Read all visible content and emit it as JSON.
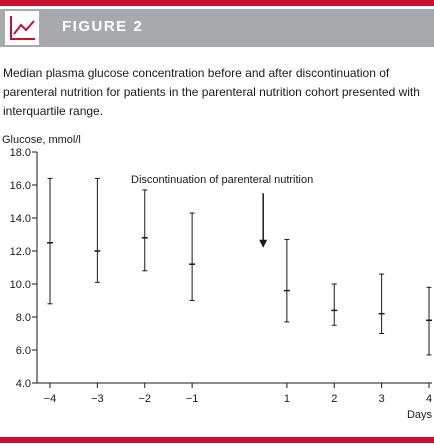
{
  "header": {
    "title": "FIGURE 2",
    "icon": "line-chart-icon",
    "accent_color": "#c8102e",
    "band_color": "#a7a9ac"
  },
  "caption": "Median plasma glucose concentration before and after discontinuation of parenteral nutrition for patients in the parenteral nutrition cohort presented with interquartile range.",
  "chart_data": {
    "type": "scatter",
    "style": "median with interquartile range error bars",
    "ylabel": "Glucose, mmol/l",
    "xlabel": "Days",
    "ylim": [
      4.0,
      18.0
    ],
    "xlim": [
      -4,
      4
    ],
    "y_ticks": [
      "4.0",
      "6.0",
      "8.0",
      "10.0",
      "12.0",
      "14.0",
      "16.0",
      "18.0"
    ],
    "x_ticks": [
      "−4",
      "−3",
      "−2",
      "−1",
      "1",
      "2",
      "3",
      "4"
    ],
    "grid": false,
    "annotation": {
      "text": "Discontinuation of parenteral nutrition",
      "arrow_x": 0.5,
      "arrow_from_y": 15.5,
      "arrow_to_y": 12.2
    },
    "points": [
      {
        "x": -4,
        "median": 12.5,
        "q1": 8.8,
        "q3": 16.4
      },
      {
        "x": -3,
        "median": 12.0,
        "q1": 10.1,
        "q3": 16.4
      },
      {
        "x": -2,
        "median": 12.8,
        "q1": 10.8,
        "q3": 15.7
      },
      {
        "x": -1,
        "median": 11.2,
        "q1": 9.0,
        "q3": 14.3
      },
      {
        "x": 1,
        "median": 9.6,
        "q1": 7.7,
        "q3": 12.7
      },
      {
        "x": 2,
        "median": 8.4,
        "q1": 7.5,
        "q3": 10.0
      },
      {
        "x": 3,
        "median": 8.2,
        "q1": 7.0,
        "q3": 10.6
      },
      {
        "x": 4,
        "median": 7.8,
        "q1": 5.7,
        "q3": 9.8
      }
    ]
  }
}
